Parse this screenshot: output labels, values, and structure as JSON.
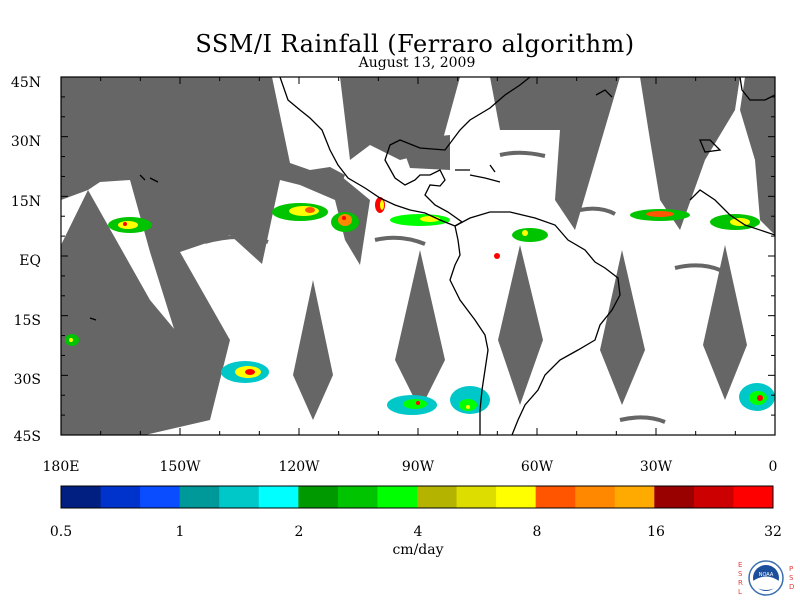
{
  "title": "SSM/I Rainfall (Ferraro algorithm)",
  "date": "August 13, 2009",
  "lat_labels": [
    "45N",
    "30N",
    "15N",
    "EQ",
    "15S",
    "30S",
    "45S"
  ],
  "lon_labels": [
    "180E",
    "150W",
    "120W",
    "90W",
    "60W",
    "30W",
    "0"
  ],
  "colorbar": {
    "unit": "cm/day",
    "tick_labels": [
      "0.5",
      "1",
      "2",
      "4",
      "8",
      "16",
      "32"
    ],
    "colors": [
      "#001f80",
      "#0033cc",
      "#0a4cff",
      "#00999a",
      "#00c8c8",
      "#00ffff",
      "#009900",
      "#00c400",
      "#00ff00",
      "#b3b300",
      "#dddd00",
      "#ffff00",
      "#ff5500",
      "#ff8800",
      "#ffaa00",
      "#990000",
      "#cc0000",
      "#ff0000"
    ]
  },
  "colors": {
    "no_data": "#666666",
    "coast": "#000000"
  },
  "logo": {
    "left_text": "ESRL",
    "right_text": "PSD",
    "center_text": "NOAA"
  }
}
